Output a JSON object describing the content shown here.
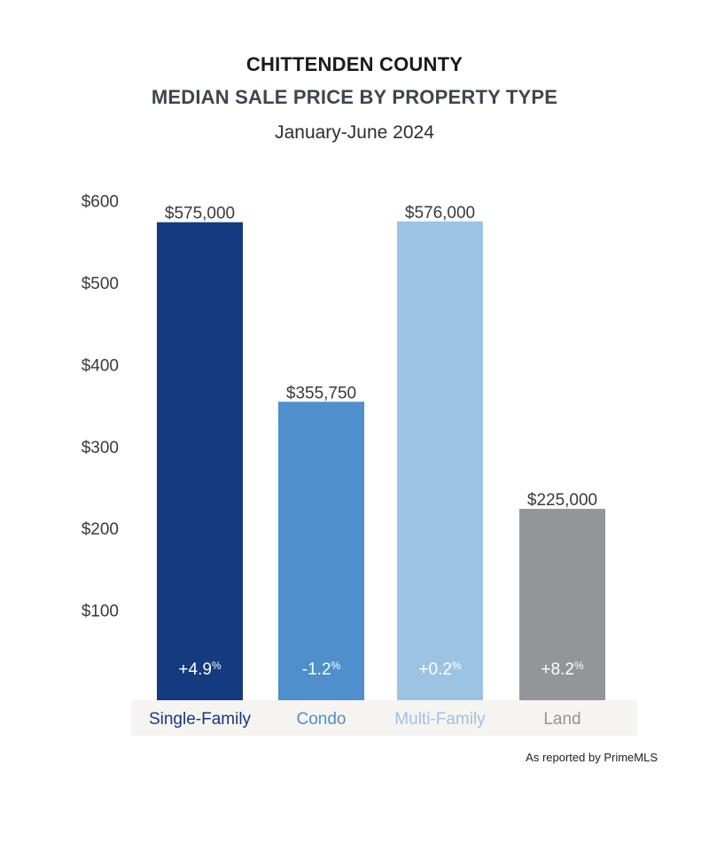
{
  "header": {
    "title": "CHITTENDEN COUNTY",
    "subtitle": "MEDIAN SALE PRICE BY PROPERTY TYPE",
    "period": "January-June 2024"
  },
  "chart_data": {
    "type": "bar",
    "title": "MEDIAN SALE PRICE BY PROPERTY TYPE",
    "categories": [
      "Single-Family",
      "Condo",
      "Multi-Family",
      "Land"
    ],
    "values": [
      575000,
      355750,
      576000,
      225000
    ],
    "value_labels": [
      "$575,000",
      "$355,750",
      "$576,000",
      "$225,000"
    ],
    "change_values": [
      "+4.9",
      "-1.2",
      "+0.2",
      "+8.2"
    ],
    "change_unit": "%",
    "bar_colors": [
      "#143a7f",
      "#4e8fcc",
      "#9dc3e4",
      "#939598"
    ],
    "label_colors": [
      "#143a7f",
      "#4e8fcc",
      "#9dc3e4",
      "#939598"
    ],
    "y_ticks": [
      100,
      200,
      300,
      400,
      500,
      600
    ],
    "y_tick_labels": [
      "$100",
      "$200",
      "$300",
      "$400",
      "$500",
      "$600"
    ],
    "y_unit": "thousands",
    "ylim": [
      0,
      600
    ],
    "grid": false,
    "category_band_color": "#f5f4f1"
  },
  "footer": {
    "source": "As reported by PrimeMLS"
  }
}
